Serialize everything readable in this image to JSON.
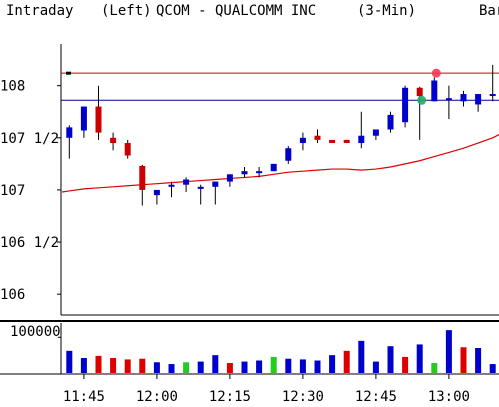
{
  "header": {
    "mode": "Intraday",
    "axis_side": "(Left)",
    "symbol_title": "QCOM - QUALCOMM INC",
    "interval": "(3-Min)",
    "right_label": "Bar"
  },
  "colors": {
    "up_bar": "#0000cc",
    "down_bar": "#cc0000",
    "ma_line": "#dd0000",
    "red_hline": "#cc0000",
    "blue_hline": "#000099",
    "vol_up": "#0000cc",
    "vol_down": "#dd0000",
    "vol_flat": "#22cc22",
    "marker_red": "#ff3355",
    "marker_green": "#22aa66"
  },
  "chart_data": [
    {
      "type": "candlestick",
      "title": "QCOM - QUALCOMM INC (3-Min)",
      "ylim": [
        105.8,
        108.4
      ],
      "y_ticks": [
        {
          "value": 108,
          "label": "108"
        },
        {
          "value": 107.5,
          "label": "107 1/2"
        },
        {
          "value": 107,
          "label": "107"
        },
        {
          "value": 106.5,
          "label": "106 1/2"
        },
        {
          "value": 106,
          "label": "106"
        }
      ],
      "x_ticks": [
        {
          "bar": 1,
          "label": "11:45"
        },
        {
          "bar": 6,
          "label": "12:00"
        },
        {
          "bar": 11,
          "label": "12:15"
        },
        {
          "bar": 16,
          "label": "12:30"
        },
        {
          "bar": 21,
          "label": "12:45"
        },
        {
          "bar": 26,
          "label": "13:00"
        }
      ],
      "bars": [
        {
          "o": 107.5,
          "h": 107.62,
          "l": 107.3,
          "c": 107.6
        },
        {
          "o": 107.57,
          "h": 107.8,
          "l": 107.5,
          "c": 107.8
        },
        {
          "o": 107.8,
          "h": 108.0,
          "l": 107.48,
          "c": 107.55
        },
        {
          "o": 107.5,
          "h": 107.55,
          "l": 107.38,
          "c": 107.45
        },
        {
          "o": 107.45,
          "h": 107.48,
          "l": 107.3,
          "c": 107.33
        },
        {
          "o": 107.23,
          "h": 107.24,
          "l": 106.85,
          "c": 107.0
        },
        {
          "o": 106.95,
          "h": 107.0,
          "l": 106.86,
          "c": 107.0
        },
        {
          "o": 107.03,
          "h": 107.08,
          "l": 106.93,
          "c": 107.05
        },
        {
          "o": 107.05,
          "h": 107.12,
          "l": 106.98,
          "c": 107.1
        },
        {
          "o": 107.01,
          "h": 107.05,
          "l": 106.86,
          "c": 107.03
        },
        {
          "o": 107.03,
          "h": 107.08,
          "l": 106.86,
          "c": 107.08
        },
        {
          "o": 107.08,
          "h": 107.15,
          "l": 107.03,
          "c": 107.15
        },
        {
          "o": 107.15,
          "h": 107.22,
          "l": 107.12,
          "c": 107.18
        },
        {
          "o": 107.18,
          "h": 107.22,
          "l": 107.12,
          "c": 107.18
        },
        {
          "o": 107.18,
          "h": 107.25,
          "l": 107.18,
          "c": 107.25
        },
        {
          "o": 107.28,
          "h": 107.42,
          "l": 107.25,
          "c": 107.4
        },
        {
          "o": 107.45,
          "h": 107.55,
          "l": 107.38,
          "c": 107.5
        },
        {
          "o": 107.52,
          "h": 107.58,
          "l": 107.45,
          "c": 107.48
        },
        {
          "o": 107.48,
          "h": 107.48,
          "l": 107.45,
          "c": 107.45
        },
        {
          "o": 107.48,
          "h": 107.48,
          "l": 107.45,
          "c": 107.45
        },
        {
          "o": 107.45,
          "h": 107.75,
          "l": 107.4,
          "c": 107.52
        },
        {
          "o": 107.52,
          "h": 107.58,
          "l": 107.48,
          "c": 107.58
        },
        {
          "o": 107.58,
          "h": 107.75,
          "l": 107.55,
          "c": 107.72
        },
        {
          "o": 107.65,
          "h": 108.0,
          "l": 107.6,
          "c": 107.98
        },
        {
          "o": 107.98,
          "h": 107.99,
          "l": 107.48,
          "c": 107.9
        },
        {
          "o": 107.85,
          "h": 108.08,
          "l": 107.85,
          "c": 108.05
        },
        {
          "o": 107.88,
          "h": 108.0,
          "l": 107.68,
          "c": 107.88
        },
        {
          "o": 107.85,
          "h": 107.95,
          "l": 107.8,
          "c": 107.92
        },
        {
          "o": 107.82,
          "h": 107.92,
          "l": 107.75,
          "c": 107.92
        },
        {
          "o": 107.92,
          "h": 108.2,
          "l": 107.85,
          "c": 107.92
        }
      ],
      "moving_average": [
        106.99,
        107.01,
        107.02,
        107.03,
        107.04,
        107.05,
        107.06,
        107.07,
        107.08,
        107.09,
        107.1,
        107.11,
        107.12,
        107.13,
        107.15,
        107.17,
        107.18,
        107.19,
        107.2,
        107.2,
        107.19,
        107.2,
        107.22,
        107.25,
        107.28,
        107.32,
        107.36,
        107.4,
        107.45,
        107.5
      ],
      "horizontal_lines": [
        {
          "value": 108.12,
          "color": "red"
        },
        {
          "value": 107.86,
          "color": "blue"
        }
      ],
      "markers": [
        {
          "bar": 25,
          "value": 108.12,
          "color": "red"
        },
        {
          "bar": 24,
          "value": 107.86,
          "color": "green"
        }
      ]
    },
    {
      "type": "bar",
      "ylabel_tick": "100000",
      "tick_value": 100000,
      "ylim": [
        0,
        140000
      ],
      "values": [
        62000,
        42000,
        48000,
        42000,
        38000,
        40000,
        30000,
        25000,
        30000,
        32000,
        50000,
        28000,
        32000,
        35000,
        45000,
        40000,
        38000,
        35000,
        50000,
        62000,
        90000,
        32000,
        75000,
        45000,
        80000,
        28000,
        120000,
        72000,
        70000,
        25000
      ],
      "colors": [
        "up",
        "up",
        "down",
        "down",
        "down",
        "down",
        "up",
        "up",
        "flat",
        "up",
        "up",
        "down",
        "up",
        "up",
        "flat",
        "up",
        "up",
        "up",
        "up",
        "down",
        "up",
        "up",
        "up",
        "down",
        "up",
        "flat",
        "up",
        "down",
        "up",
        "up"
      ]
    }
  ]
}
